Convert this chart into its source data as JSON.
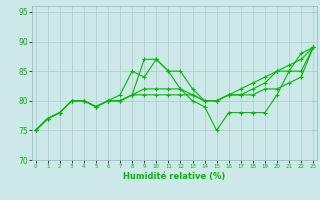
{
  "background_color": "#cce8e8",
  "grid_color": "#aacccc",
  "line_color": "#00bb00",
  "xlabel": "Humidité relative (%)",
  "ylim": [
    70,
    96
  ],
  "xlim": [
    -0.3,
    23.3
  ],
  "yticks": [
    70,
    75,
    80,
    85,
    90,
    95
  ],
  "xticks": [
    0,
    1,
    2,
    3,
    4,
    5,
    6,
    7,
    8,
    9,
    10,
    11,
    12,
    13,
    14,
    15,
    16,
    17,
    18,
    19,
    20,
    21,
    22,
    23
  ],
  "series": [
    [
      75,
      77,
      78,
      80,
      80,
      79,
      80,
      80,
      81,
      87,
      87,
      85,
      82,
      80,
      79,
      75,
      78,
      78,
      78,
      78,
      81,
      85,
      85,
      89
    ],
    [
      75,
      77,
      78,
      80,
      80,
      79,
      80,
      81,
      85,
      84,
      87,
      85,
      85,
      82,
      80,
      80,
      81,
      81,
      82,
      83,
      85,
      85,
      88,
      89
    ],
    [
      75,
      77,
      78,
      80,
      80,
      79,
      80,
      80,
      81,
      82,
      82,
      82,
      82,
      81,
      80,
      80,
      81,
      82,
      83,
      84,
      85,
      86,
      87,
      89
    ],
    [
      75,
      77,
      78,
      80,
      80,
      79,
      80,
      80,
      81,
      81,
      81,
      81,
      81,
      81,
      80,
      80,
      81,
      81,
      81,
      82,
      82,
      83,
      84,
      89
    ]
  ]
}
